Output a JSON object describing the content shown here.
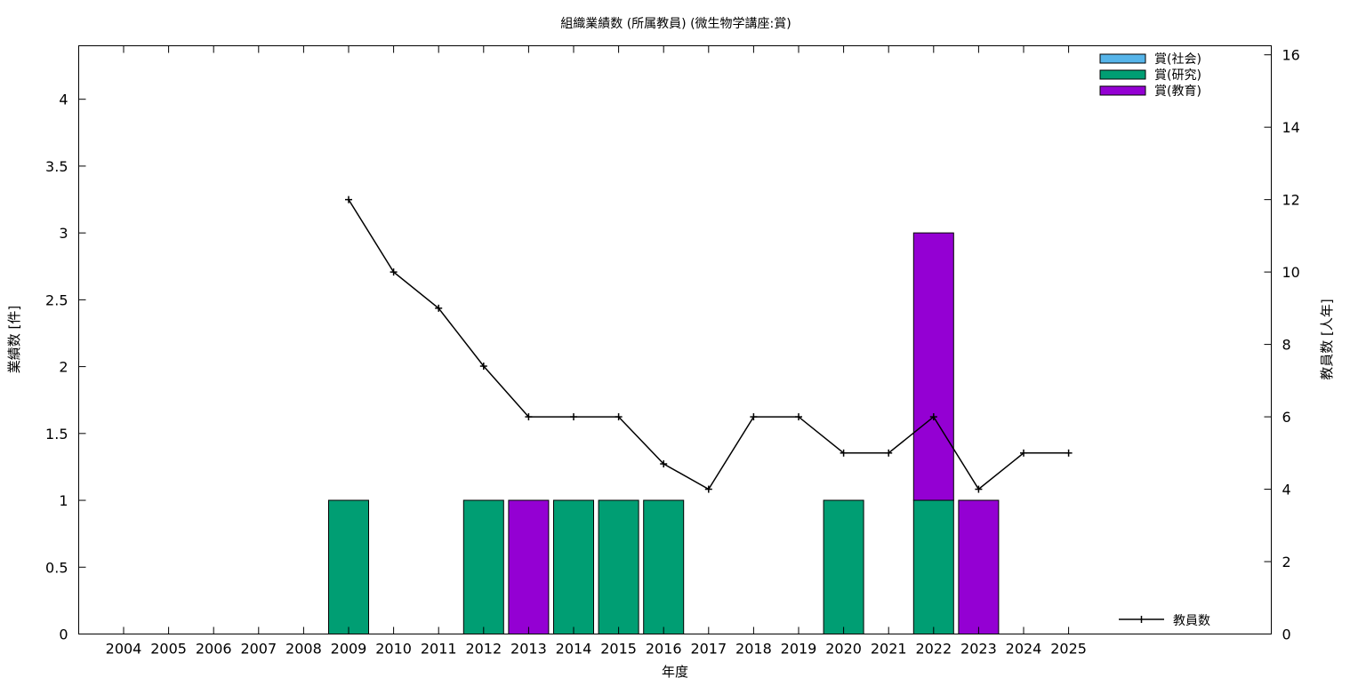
{
  "chart_data": {
    "type": "bar",
    "title": "組織業績数 (所属教員) (微生物学講座:賞)",
    "xlabel": "年度",
    "ylabel": "業績数 [件]",
    "y2label": "教員数 [人年]",
    "categories": [
      "2004",
      "2005",
      "2006",
      "2007",
      "2008",
      "2009",
      "2010",
      "2011",
      "2012",
      "2013",
      "2014",
      "2015",
      "2016",
      "2017",
      "2018",
      "2019",
      "2020",
      "2021",
      "2022",
      "2023",
      "2024",
      "2025"
    ],
    "ylim": [
      0,
      4.4
    ],
    "yticks": [
      "0",
      "0.5",
      "1",
      "1.5",
      "2",
      "2.5",
      "3",
      "3.5",
      "4"
    ],
    "y2lim": [
      0,
      16.25
    ],
    "y2ticks": [
      "0",
      "2",
      "4",
      "6",
      "8",
      "10",
      "12",
      "14",
      "16"
    ],
    "stacked": true,
    "series": [
      {
        "name": "賞(社会)",
        "color": "#56b4e9",
        "values": [
          0,
          0,
          0,
          0,
          0,
          0,
          0,
          0,
          0,
          0,
          0,
          0,
          0,
          0,
          0,
          0,
          0,
          0,
          0,
          0,
          0,
          0
        ]
      },
      {
        "name": "賞(研究)",
        "color": "#009e73",
        "values": [
          0,
          0,
          0,
          0,
          0,
          1,
          0,
          0,
          1,
          0,
          1,
          1,
          1,
          0,
          0,
          0,
          1,
          0,
          1,
          0,
          0,
          0
        ]
      },
      {
        "name": "賞(教育)",
        "color": "#9400d3",
        "values": [
          0,
          0,
          0,
          0,
          0,
          0,
          0,
          0,
          0,
          1,
          0,
          0,
          0,
          0,
          0,
          0,
          0,
          0,
          2,
          1,
          0,
          0
        ]
      }
    ],
    "line_series": {
      "name": "教員数",
      "color": "#000000",
      "axis": "y2",
      "x": [
        "2009",
        "2010",
        "2011",
        "2012",
        "2013",
        "2014",
        "2015",
        "2016",
        "2017",
        "2018",
        "2019",
        "2020",
        "2021",
        "2022",
        "2023",
        "2024",
        "2025"
      ],
      "values": [
        12,
        10,
        9,
        7.4,
        6,
        6,
        6,
        4.7,
        4,
        6,
        6,
        5,
        5,
        6,
        4,
        5,
        5
      ]
    },
    "legend_placement": "top-right",
    "line_legend_placement": "bottom-right",
    "grid": false
  }
}
